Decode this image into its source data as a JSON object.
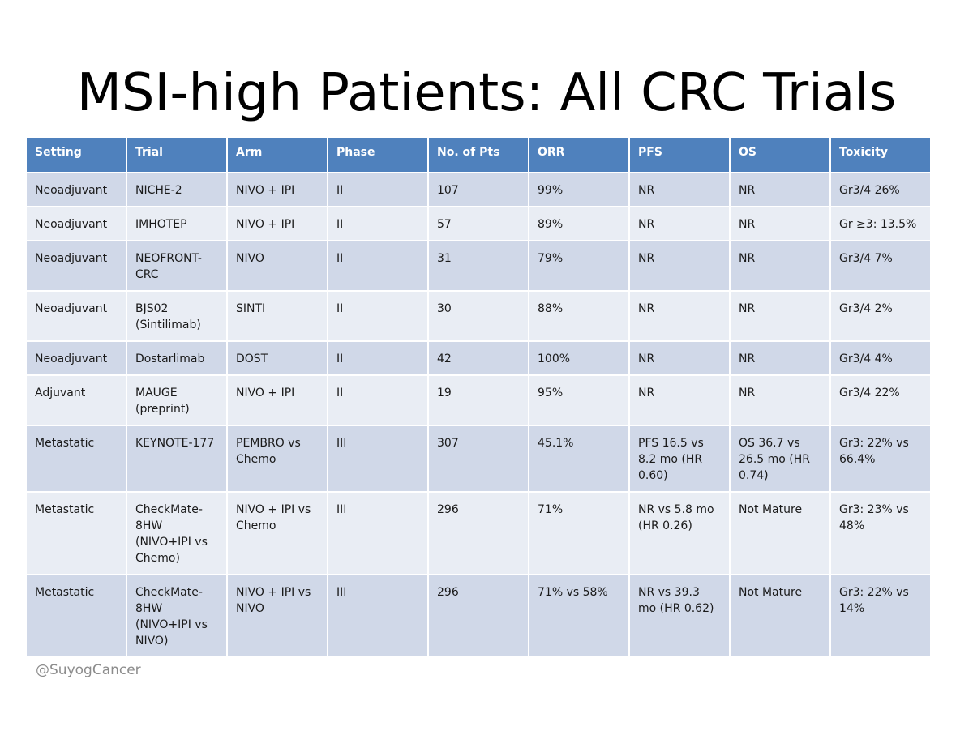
{
  "title": "MSI-high Patients: All CRC Trials",
  "table": {
    "headers": [
      "Setting",
      "Trial",
      "Arm",
      "Phase",
      "No. of Pts",
      "ORR",
      "PFS",
      "OS",
      "Toxicity"
    ],
    "rows": [
      [
        "Neoadjuvant",
        "NICHE-2",
        "NIVO + IPI",
        "II",
        "107",
        "99%",
        "NR",
        "NR",
        "Gr3/4 26%"
      ],
      [
        "Neoadjuvant",
        "IMHOTEP",
        "NIVO + IPI",
        "II",
        "57",
        "89%",
        "NR",
        "NR",
        "Gr ≥3: 13.5%"
      ],
      [
        "Neoadjuvant",
        "NEOFRONT-CRC",
        "NIVO",
        "II",
        "31",
        "79%",
        "NR",
        "NR",
        "Gr3/4 7%"
      ],
      [
        "Neoadjuvant",
        "BJS02 (Sintilimab)",
        "SINTI",
        "II",
        "30",
        "88%",
        "NR",
        "NR",
        "Gr3/4 2%"
      ],
      [
        "Neoadjuvant",
        "Dostarlimab",
        "DOST",
        "II",
        "42",
        "100%",
        "NR",
        "NR",
        "Gr3/4 4%"
      ],
      [
        "Adjuvant",
        "MAUGE (preprint)",
        "NIVO + IPI",
        "II",
        "19",
        "95%",
        "NR",
        "NR",
        "Gr3/4 22%"
      ],
      [
        "Metastatic",
        "KEYNOTE-177",
        "PEMBRO vs Chemo",
        "III",
        "307",
        "45.1%",
        "PFS 16.5 vs 8.2 mo (HR 0.60)",
        "OS 36.7 vs 26.5 mo (HR 0.74)",
        "Gr3: 22% vs 66.4%"
      ],
      [
        "Metastatic",
        "CheckMate-8HW (NIVO+IPI vs Chemo)",
        "NIVO + IPI vs Chemo",
        "III",
        "296",
        "71%",
        "NR vs 5.8 mo (HR 0.26)",
        "Not Mature",
        "Gr3: 23% vs 48%"
      ],
      [
        "Metastatic",
        "CheckMate-8HW (NIVO+IPI vs NIVO)",
        "NIVO + IPI vs NIVO",
        "III",
        "296",
        "71% vs 58%",
        "NR vs 39.3 mo (HR 0.62)",
        "Not Mature",
        "Gr3: 22% vs 14%"
      ]
    ]
  },
  "footer": {
    "handle": "@SuyogCancer"
  },
  "colors": {
    "header_bg": "#4f81bd",
    "row_odd_bg": "#d0d8e8",
    "row_even_bg": "#e9edf4",
    "footer_text": "#8c8c8c"
  }
}
